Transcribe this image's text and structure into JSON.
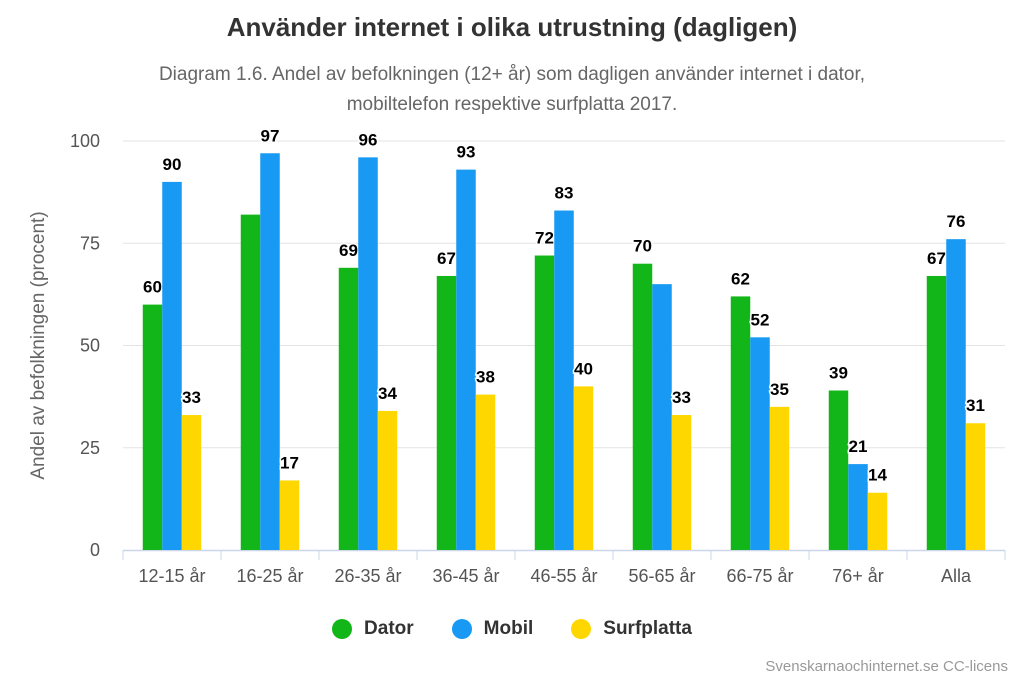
{
  "chart_data": {
    "type": "bar",
    "title": "Använder internet i olika utrustning (dagligen)",
    "subtitle_lines": [
      "Diagram 1.6. Andel av befolkningen (12+ år) som dagligen använder internet i dator,",
      "mobiltelefon respektive surfplatta 2017."
    ],
    "ylabel": "Andel av befolkningen (procent)",
    "ylim": [
      0,
      100
    ],
    "yticks": [
      0,
      25,
      50,
      75,
      100
    ],
    "grid": true,
    "legend_position": "bottom",
    "categories": [
      "12-15 år",
      "16-25 år",
      "26-35 år",
      "36-45 år",
      "46-55 år",
      "56-65 år",
      "66-75 år",
      "76+ år",
      "Alla"
    ],
    "series": [
      {
        "name": "Dator",
        "color": "#13b618",
        "values": [
          60,
          82,
          69,
          67,
          72,
          70,
          62,
          39,
          67
        ],
        "data_labels": [
          "60",
          "",
          "69",
          "67",
          "72",
          "70",
          "62",
          "39",
          "67"
        ]
      },
      {
        "name": "Mobil",
        "color": "#1899f3",
        "values": [
          90,
          97,
          96,
          93,
          83,
          65,
          52,
          21,
          76
        ],
        "data_labels": [
          "90",
          "97",
          "96",
          "93",
          "83",
          "",
          "52",
          "21",
          "76"
        ]
      },
      {
        "name": "Surfplatta",
        "color": "#ffd700",
        "values": [
          33,
          17,
          34,
          38,
          40,
          33,
          35,
          14,
          31
        ],
        "data_labels": [
          "33",
          "17",
          "34",
          "38",
          "40",
          "33",
          "35",
          "14",
          "31"
        ]
      }
    ]
  },
  "credits": "Svenskarnaochinternet.se CC-licens"
}
